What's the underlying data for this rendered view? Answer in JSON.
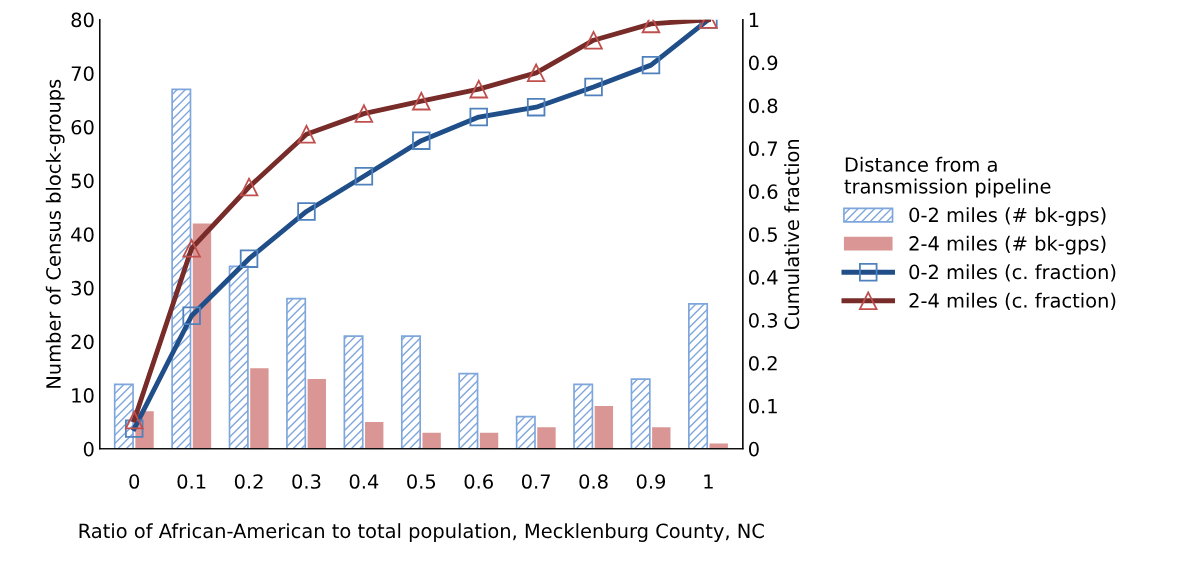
{
  "chart_data": {
    "type": "bar",
    "xlabel": "Ratio of African-American to total population, Mecklenburg County, NC",
    "ylabel": "Number of Census block-groups",
    "y2label": "Cumulative fraction",
    "legend_title": "Distance from a\ntransmission pipeline",
    "categories": [
      "0",
      "0.1",
      "0.2",
      "0.3",
      "0.4",
      "0.5",
      "0.6",
      "0.7",
      "0.8",
      "0.9",
      "1"
    ],
    "series": [
      {
        "name": "0-2 miles (# bk-gps)",
        "color": "#7ea6dc",
        "values": [
          12,
          67,
          34,
          28,
          21,
          21,
          14,
          6,
          12,
          13,
          27
        ]
      },
      {
        "name": "2-4 miles (# bk-gps)",
        "color": "#d99694",
        "values": [
          7,
          42,
          15,
          13,
          5,
          3,
          3,
          4,
          8,
          4,
          1
        ]
      },
      {
        "name": "0-2 miles (c. fraction)",
        "type": "line",
        "axis": "y2",
        "color": "#1f4e89",
        "marker": "square",
        "values": [
          0.047,
          0.31,
          0.443,
          0.553,
          0.635,
          0.718,
          0.773,
          0.796,
          0.843,
          0.894,
          1.0
        ]
      },
      {
        "name": "2-4 miles (c. fraction)",
        "type": "line",
        "axis": "y2",
        "color": "#772c2a",
        "marker": "triangle",
        "values": [
          0.067,
          0.467,
          0.61,
          0.733,
          0.781,
          0.81,
          0.838,
          0.876,
          0.952,
          0.99,
          1.0
        ]
      }
    ],
    "ylim": [
      0,
      80
    ],
    "yticks": [
      0,
      10,
      20,
      30,
      40,
      50,
      60,
      70,
      80
    ],
    "y2lim": [
      0,
      1
    ],
    "y2ticks": [
      0,
      0.1,
      0.2,
      0.3,
      0.4,
      0.5,
      0.6,
      0.7,
      0.8,
      0.9,
      1
    ],
    "legend": "right",
    "grid": false
  }
}
